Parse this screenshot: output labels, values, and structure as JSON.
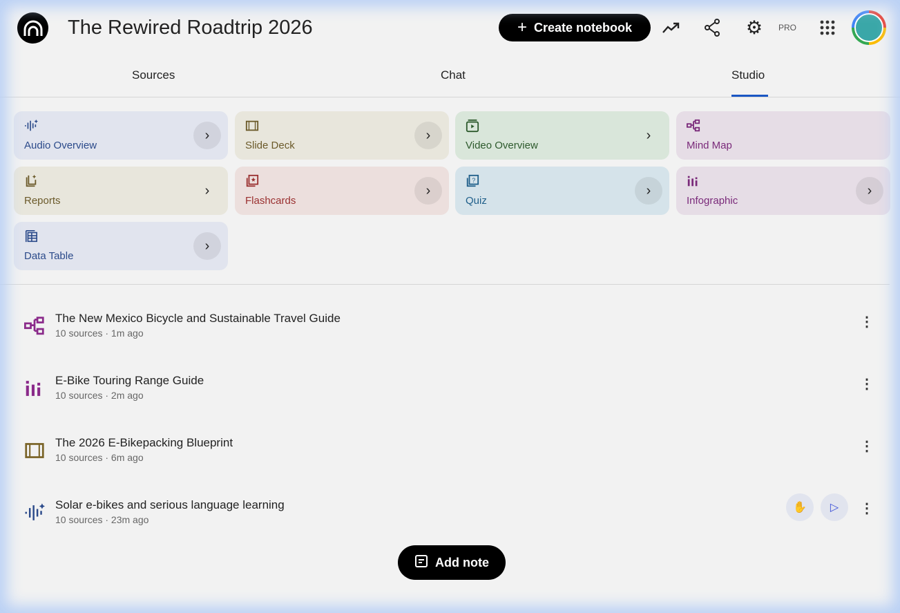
{
  "header": {
    "title": "The Rewired Roadtrip 2026",
    "create_label": "Create notebook",
    "pro_label": "PRO"
  },
  "tabs": [
    {
      "label": "Sources"
    },
    {
      "label": "Chat"
    },
    {
      "label": "Studio",
      "active": true
    }
  ],
  "studio_tools": [
    {
      "label": "Audio Overview",
      "icon": "audio-waveform-icon",
      "color": "#2b4a8a",
      "bg": "#e1e4ee"
    },
    {
      "label": "Slide Deck",
      "icon": "slides-icon",
      "color": "#6b5a2a",
      "bg": "#e8e6dc"
    },
    {
      "label": "Video Overview",
      "icon": "video-icon",
      "color": "#2d5a2d",
      "bg": "#d9e6da"
    },
    {
      "label": "Mind Map",
      "icon": "mind-map-icon",
      "color": "#7a2a7a",
      "bg": "#e6dde6"
    },
    {
      "label": "Reports",
      "icon": "reports-icon",
      "color": "#6b5a2a",
      "bg": "#e8e6dc"
    },
    {
      "label": "Flashcards",
      "icon": "flashcards-icon",
      "color": "#9a3030",
      "bg": "#ecdfdd"
    },
    {
      "label": "Quiz",
      "icon": "quiz-icon",
      "color": "#1f5f8a",
      "bg": "#d5e3ea"
    },
    {
      "label": "Infographic",
      "icon": "infographic-icon",
      "color": "#7a2a7a",
      "bg": "#e6dde6"
    },
    {
      "label": "Data Table",
      "icon": "data-table-icon",
      "color": "#2b4a8a",
      "bg": "#e1e4ee"
    }
  ],
  "notes": [
    {
      "title": "The New Mexico Bicycle and Sustainable Travel Guide",
      "meta": "10 sources · 1m ago",
      "icon": "mind-map-icon",
      "color": "#8a2a8a"
    },
    {
      "title": "E-Bike Touring Range Guide",
      "meta": "10 sources · 2m ago",
      "icon": "infographic-icon",
      "color": "#8a2a8a"
    },
    {
      "title": "The 2026 E-Bikepacking Blueprint",
      "meta": "10 sources · 6m ago",
      "icon": "slides-icon",
      "color": "#7a6428"
    },
    {
      "title": "Solar e-bikes and serious language learning",
      "meta": "10 sources · 23m ago",
      "icon": "audio-waveform-icon",
      "color": "#2b4a8a"
    }
  ],
  "add_note_label": "Add note"
}
